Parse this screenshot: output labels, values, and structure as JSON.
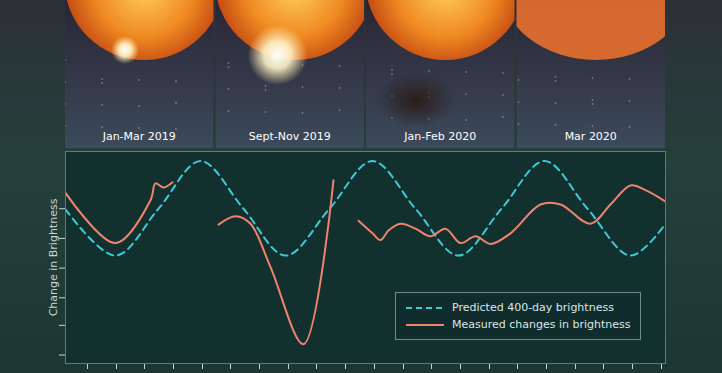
{
  "chart_data": {
    "type": "line",
    "ylabel": "Change in Brightness",
    "annotations": [
      "Jan-Mar 2019",
      "Sept-Nov 2019",
      "Jan-Feb 2020",
      "Mar 2020"
    ],
    "xlim": [
      0,
      600
    ],
    "ylim": [
      0,
      100
    ],
    "xticks": [
      22,
      51,
      79,
      108,
      137,
      165,
      194,
      223,
      251,
      280,
      309,
      338,
      366,
      395,
      424,
      452,
      481,
      510,
      538,
      567,
      596
    ],
    "yticks": [
      4,
      18,
      31,
      45,
      59,
      73
    ],
    "tick_labels": false,
    "grid": false,
    "legend": "lower right",
    "series": [
      {
        "name": "Predicted 400-day brightness",
        "color": "#3ec9d6",
        "line_style": "dashed",
        "x": [
          0,
          50,
          93,
          135,
          178,
          220,
          264,
          307,
          350,
          393,
          436,
          479,
          522,
          565,
          600
        ],
        "values": [
          72.7,
          50.9,
          73,
          95.5,
          73,
          50.9,
          73,
          95.5,
          73,
          50.9,
          73,
          95.5,
          73,
          50.9,
          65.9
        ]
      },
      {
        "name": "Measured changes in brightness",
        "color": "#f0836e",
        "line_style": "solid",
        "x": [
          0,
          50,
          85,
          90,
          98,
          107,
          130,
          153,
          170,
          185,
          205,
          238,
          268,
          280,
          293,
          307,
          315,
          323,
          335,
          350,
          365,
          380,
          395,
          410,
          425,
          445,
          475,
          495,
          525,
          545,
          565,
          580,
          600
        ],
        "values": [
          80.5,
          56.8,
          77,
          85,
          83,
          85.5,
          null,
          65.5,
          69.5,
          65.9,
          45.5,
          9.1,
          86.4,
          null,
          67.3,
          61.4,
          58.2,
          62.7,
          65.9,
          63.6,
          60,
          63.6,
          56.8,
          60,
          56.4,
          61.4,
          75,
          75,
          65.9,
          75,
          84,
          81.8,
          76.4
        ]
      }
    ]
  }
}
